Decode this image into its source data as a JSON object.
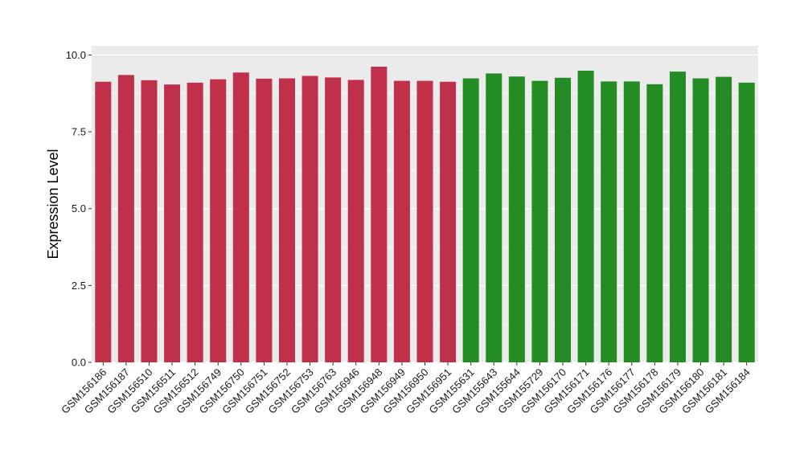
{
  "chart_data": {
    "type": "bar",
    "title": "",
    "xlabel": "",
    "ylabel": "Expression Level",
    "ylim": [
      0,
      10.3
    ],
    "yticks": [
      "0.0",
      "2.5",
      "5.0",
      "7.5",
      "10.0"
    ],
    "grid": true,
    "legend": "none",
    "categories": [
      "GSM156186",
      "GSM156187",
      "GSM156510",
      "GSM156511",
      "GSM156512",
      "GSM156749",
      "GSM156750",
      "GSM156751",
      "GSM156752",
      "GSM156753",
      "GSM156763",
      "GSM156946",
      "GSM156948",
      "GSM156949",
      "GSM156950",
      "GSM156951",
      "GSM155631",
      "GSM155643",
      "GSM155644",
      "GSM155729",
      "GSM156170",
      "GSM156171",
      "GSM156176",
      "GSM156177",
      "GSM156178",
      "GSM156179",
      "GSM156180",
      "GSM156181",
      "GSM156184"
    ],
    "values": [
      9.13,
      9.35,
      9.18,
      9.04,
      9.1,
      9.21,
      9.43,
      9.23,
      9.24,
      9.32,
      9.27,
      9.19,
      9.62,
      9.16,
      9.16,
      9.13,
      9.24,
      9.4,
      9.3,
      9.16,
      9.26,
      9.49,
      9.14,
      9.14,
      9.05,
      9.46,
      9.24,
      9.29,
      9.1
    ],
    "groups": [
      "red",
      "red",
      "red",
      "red",
      "red",
      "red",
      "red",
      "red",
      "red",
      "red",
      "red",
      "red",
      "red",
      "red",
      "red",
      "red",
      "green",
      "green",
      "green",
      "green",
      "green",
      "green",
      "green",
      "green",
      "green",
      "green",
      "green",
      "green",
      "green"
    ],
    "colors": {
      "red": "#c1304a",
      "green": "#238c23",
      "panel": "#ebebeb",
      "grid": "#ffffff"
    }
  }
}
